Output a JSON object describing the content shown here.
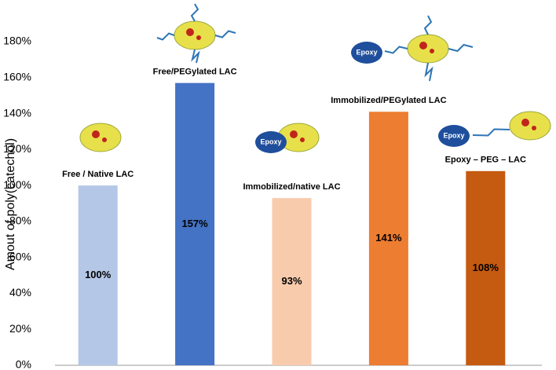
{
  "chart_data": {
    "type": "bar",
    "y_label": "Amout of poly(catechol)",
    "categories": [
      "Free / Native  LAC",
      "Free/PEGylated LAC",
      "Immobilized/native LAC",
      "Immobilized/PEGylated LAC",
      "Epoxy – PEG –  LAC"
    ],
    "values": [
      100,
      157,
      93,
      141,
      108
    ],
    "value_labels": [
      "100%",
      "157%",
      "93%",
      "141%",
      "108%"
    ],
    "colors": [
      "#b4c7e7",
      "#4472c4",
      "#f8cbad",
      "#ed7d31",
      "#c55a11"
    ],
    "ylim": [
      0,
      180
    ],
    "yticks": [
      {
        "value": 0,
        "label": "0%"
      },
      {
        "value": 20,
        "label": "20%"
      },
      {
        "value": 40,
        "label": "40%"
      },
      {
        "value": 60,
        "label": "60%"
      },
      {
        "value": 80,
        "label": "80%"
      },
      {
        "value": 100,
        "label": "100%"
      },
      {
        "value": 120,
        "label": "120%"
      },
      {
        "value": 140,
        "label": "140%"
      },
      {
        "value": 160,
        "label": "160%"
      },
      {
        "value": 180,
        "label": "180%"
      }
    ],
    "grid": false,
    "annotations": [
      "Epoxy",
      "Epoxy",
      "Epoxy"
    ]
  }
}
